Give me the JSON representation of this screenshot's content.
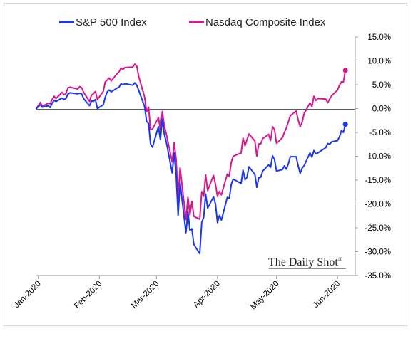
{
  "chart_data": {
    "type": "line",
    "title": "",
    "xlabel": "",
    "ylabel": "",
    "y_axis_side": "right",
    "ylim": [
      -35,
      15
    ],
    "yticks": [
      15,
      10,
      5,
      0,
      -5,
      -10,
      -15,
      -20,
      -25,
      -30,
      -35
    ],
    "ytick_labels": [
      "15.0%",
      "10.0%",
      "5.0%",
      "0.0%",
      "-5.0%",
      "-10.0%",
      "-15.0%",
      "-20.0%",
      "-25.0%",
      "-30.0%",
      "-35.0%"
    ],
    "xlim": [
      "2019-12-31",
      "2020-06-10"
    ],
    "xticks": [
      "2020-01-01",
      "2020-02-01",
      "2020-03-01",
      "2020-04-01",
      "2020-05-01",
      "2020-06-01"
    ],
    "xtick_labels": [
      "Jan-2020",
      "Feb-2020",
      "Mar-2020",
      "Apr-2020",
      "May-2020",
      "Jun-2020"
    ],
    "legend_position": "top",
    "grid": false,
    "zero_line": true,
    "watermark": "The Daily Shot",
    "watermark_mark": "®",
    "series": [
      {
        "name": "S&P 500 Index",
        "color": "#1a36f0",
        "end_marker": true,
        "x": [
          "2019-12-31",
          "2020-01-02",
          "2020-01-03",
          "2020-01-06",
          "2020-01-07",
          "2020-01-08",
          "2020-01-09",
          "2020-01-10",
          "2020-01-13",
          "2020-01-14",
          "2020-01-15",
          "2020-01-16",
          "2020-01-17",
          "2020-01-21",
          "2020-01-22",
          "2020-01-23",
          "2020-01-24",
          "2020-01-27",
          "2020-01-28",
          "2020-01-29",
          "2020-01-30",
          "2020-01-31",
          "2020-02-03",
          "2020-02-04",
          "2020-02-05",
          "2020-02-06",
          "2020-02-07",
          "2020-02-10",
          "2020-02-11",
          "2020-02-12",
          "2020-02-13",
          "2020-02-14",
          "2020-02-18",
          "2020-02-19",
          "2020-02-20",
          "2020-02-21",
          "2020-02-24",
          "2020-02-25",
          "2020-02-26",
          "2020-02-27",
          "2020-02-28",
          "2020-03-02",
          "2020-03-03",
          "2020-03-04",
          "2020-03-05",
          "2020-03-06",
          "2020-03-09",
          "2020-03-10",
          "2020-03-11",
          "2020-03-12",
          "2020-03-13",
          "2020-03-16",
          "2020-03-17",
          "2020-03-18",
          "2020-03-19",
          "2020-03-20",
          "2020-03-23",
          "2020-03-24",
          "2020-03-25",
          "2020-03-26",
          "2020-03-27",
          "2020-03-30",
          "2020-03-31",
          "2020-04-01",
          "2020-04-02",
          "2020-04-03",
          "2020-04-06",
          "2020-04-07",
          "2020-04-08",
          "2020-04-09",
          "2020-04-13",
          "2020-04-14",
          "2020-04-15",
          "2020-04-16",
          "2020-04-17",
          "2020-04-20",
          "2020-04-21",
          "2020-04-22",
          "2020-04-23",
          "2020-04-24",
          "2020-04-27",
          "2020-04-28",
          "2020-04-29",
          "2020-04-30",
          "2020-05-01",
          "2020-05-04",
          "2020-05-05",
          "2020-05-06",
          "2020-05-07",
          "2020-05-08",
          "2020-05-11",
          "2020-05-12",
          "2020-05-13",
          "2020-05-14",
          "2020-05-15",
          "2020-05-18",
          "2020-05-19",
          "2020-05-20",
          "2020-05-21",
          "2020-05-22",
          "2020-05-26",
          "2020-05-27",
          "2020-05-28",
          "2020-05-29",
          "2020-06-01",
          "2020-06-02",
          "2020-06-03",
          "2020-06-04",
          "2020-06-05"
        ],
        "values": [
          0,
          0.8,
          0.3,
          0.6,
          0.2,
          1.1,
          1.7,
          1.5,
          2.2,
          1.9,
          2.1,
          3.0,
          3.3,
          3.1,
          3.2,
          3.1,
          2.1,
          0.6,
          1.6,
          1.5,
          1.9,
          0.0,
          0.8,
          2.4,
          3.5,
          3.9,
          3.5,
          4.3,
          4.5,
          5.2,
          5.0,
          5.2,
          4.9,
          5.4,
          4.9,
          3.8,
          0.4,
          -2.7,
          -3.1,
          -7.4,
          -8.1,
          -3.8,
          -6.5,
          -2.2,
          -5.4,
          -7.0,
          -13.5,
          -9.3,
          -13.8,
          -22.4,
          -15.6,
          -26.0,
          -21.7,
          -25.5,
          -25.2,
          -28.5,
          -30.4,
          -23.9,
          -22.8,
          -17.9,
          -20.9,
          -18.5,
          -20.0,
          -23.9,
          -22.4,
          -23.4,
          -18.6,
          -18.9,
          -15.9,
          -14.8,
          -15.7,
          -12.9,
          -14.9,
          -14.4,
          -12.2,
          -13.8,
          -16.5,
          -14.5,
          -14.4,
          -13.1,
          -11.8,
          -12.3,
          -9.9,
          -10.7,
          -13.1,
          -12.8,
          -12.0,
          -12.7,
          -11.6,
          -10.1,
          -10.1,
          -12.0,
          -13.6,
          -12.5,
          -12.0,
          -9.3,
          -10.2,
          -8.8,
          -9.5,
          -9.3,
          -8.2,
          -7.3,
          -7.5,
          -7.0,
          -6.7,
          -5.9,
          -4.6,
          -5.0,
          -3.3
        ]
      },
      {
        "name": "Nasdaq Composite Index",
        "color": "#d6178e",
        "end_marker": true,
        "x": [
          "2019-12-31",
          "2020-01-02",
          "2020-01-03",
          "2020-01-06",
          "2020-01-07",
          "2020-01-08",
          "2020-01-09",
          "2020-01-10",
          "2020-01-13",
          "2020-01-14",
          "2020-01-15",
          "2020-01-16",
          "2020-01-17",
          "2020-01-21",
          "2020-01-22",
          "2020-01-23",
          "2020-01-24",
          "2020-01-27",
          "2020-01-28",
          "2020-01-29",
          "2020-01-30",
          "2020-01-31",
          "2020-02-03",
          "2020-02-04",
          "2020-02-05",
          "2020-02-06",
          "2020-02-07",
          "2020-02-10",
          "2020-02-11",
          "2020-02-12",
          "2020-02-13",
          "2020-02-14",
          "2020-02-18",
          "2020-02-19",
          "2020-02-20",
          "2020-02-21",
          "2020-02-24",
          "2020-02-25",
          "2020-02-26",
          "2020-02-27",
          "2020-02-28",
          "2020-03-02",
          "2020-03-03",
          "2020-03-04",
          "2020-03-05",
          "2020-03-06",
          "2020-03-09",
          "2020-03-10",
          "2020-03-11",
          "2020-03-12",
          "2020-03-13",
          "2020-03-16",
          "2020-03-17",
          "2020-03-18",
          "2020-03-19",
          "2020-03-20",
          "2020-03-23",
          "2020-03-24",
          "2020-03-25",
          "2020-03-26",
          "2020-03-27",
          "2020-03-30",
          "2020-03-31",
          "2020-04-01",
          "2020-04-02",
          "2020-04-03",
          "2020-04-06",
          "2020-04-07",
          "2020-04-08",
          "2020-04-09",
          "2020-04-13",
          "2020-04-14",
          "2020-04-15",
          "2020-04-16",
          "2020-04-17",
          "2020-04-20",
          "2020-04-21",
          "2020-04-22",
          "2020-04-23",
          "2020-04-24",
          "2020-04-27",
          "2020-04-28",
          "2020-04-29",
          "2020-04-30",
          "2020-05-01",
          "2020-05-04",
          "2020-05-05",
          "2020-05-06",
          "2020-05-07",
          "2020-05-08",
          "2020-05-11",
          "2020-05-12",
          "2020-05-13",
          "2020-05-14",
          "2020-05-15",
          "2020-05-18",
          "2020-05-19",
          "2020-05-20",
          "2020-05-21",
          "2020-05-22",
          "2020-05-26",
          "2020-05-27",
          "2020-05-28",
          "2020-05-29",
          "2020-06-01",
          "2020-06-02",
          "2020-06-03",
          "2020-06-04",
          "2020-06-05"
        ],
        "values": [
          0,
          1.3,
          0.5,
          1.1,
          1.0,
          1.9,
          2.6,
          2.1,
          3.4,
          2.9,
          3.1,
          4.3,
          4.5,
          4.1,
          4.6,
          4.4,
          3.4,
          1.5,
          2.8,
          3.1,
          3.6,
          1.9,
          3.6,
          5.6,
          6.0,
          6.4,
          5.8,
          7.3,
          7.7,
          8.5,
          8.2,
          8.6,
          8.7,
          9.3,
          8.9,
          6.7,
          2.4,
          -0.7,
          0.3,
          -4.4,
          -4.3,
          -1.9,
          -4.3,
          -0.6,
          -3.6,
          -5.3,
          -11.2,
          -7.2,
          -10.6,
          -18.8,
          -12.4,
          -23.3,
          -18.6,
          -22.3,
          -19.5,
          -22.6,
          -23.2,
          -17.4,
          -18.4,
          -13.9,
          -17.2,
          -14.0,
          -15.9,
          -18.4,
          -17.4,
          -18.1,
          -13.7,
          -14.2,
          -11.3,
          -10.0,
          -9.3,
          -6.2,
          -7.8,
          -6.5,
          -5.3,
          -6.8,
          -10.0,
          -7.4,
          -7.4,
          -6.3,
          -5.4,
          -6.7,
          -3.8,
          -4.4,
          -7.3,
          -6.1,
          -5.0,
          -4.1,
          -2.8,
          -1.5,
          -0.5,
          -2.4,
          -3.8,
          -2.9,
          -1.1,
          1.2,
          0.4,
          2.6,
          1.7,
          2.1,
          2.0,
          1.2,
          2.0,
          2.7,
          3.9,
          4.9,
          5.6,
          5.6,
          8.0
        ]
      }
    ]
  }
}
